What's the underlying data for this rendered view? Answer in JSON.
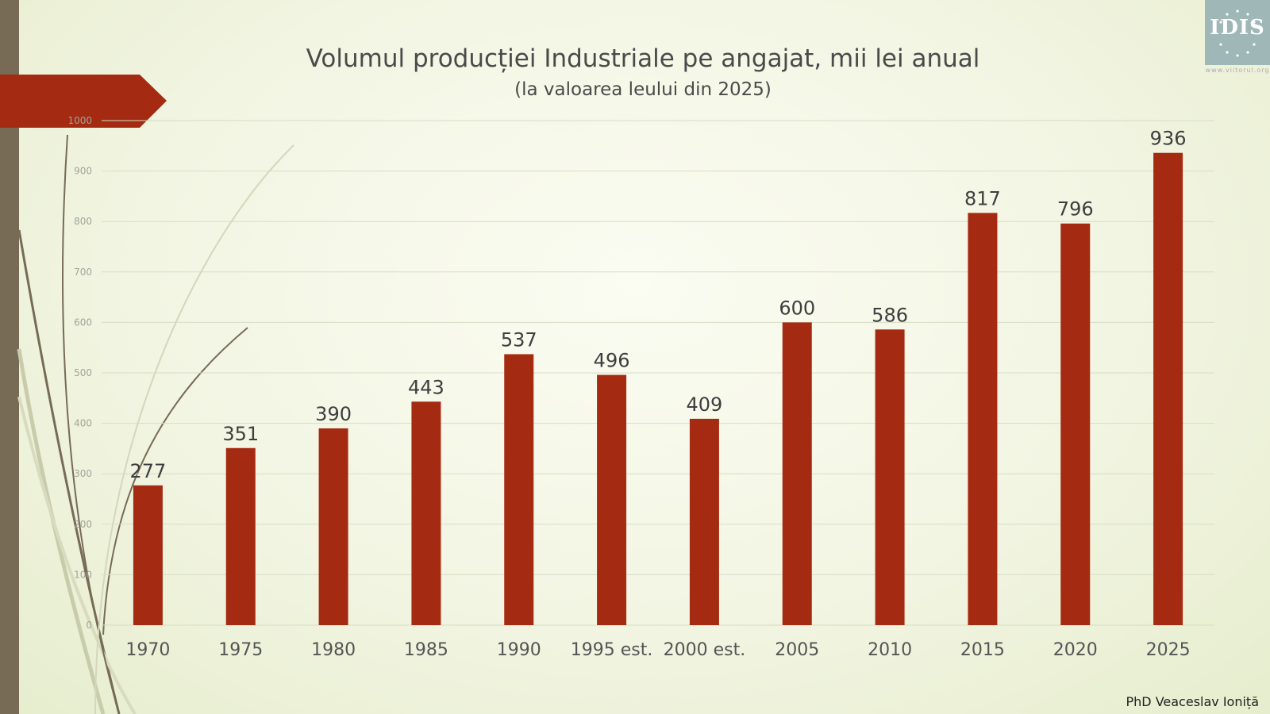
{
  "slide": {
    "author": "PhD Veaceslav Ioniță",
    "logo_text": "IDIS",
    "logo_url": "www.viitorul.org"
  },
  "chart_data": {
    "type": "bar",
    "title": "Volumul producției Industriale pe angajat, mii lei anual",
    "subtitle": "(la valoarea leului din 2025)",
    "xlabel": "",
    "ylabel": "",
    "categories": [
      "1970",
      "1975",
      "1980",
      "1985",
      "1990",
      "1995 est.",
      "2000 est.",
      "2005",
      "2010",
      "2015",
      "2020",
      "2025"
    ],
    "values": [
      277,
      351,
      390,
      443,
      537,
      496,
      409,
      600,
      586,
      817,
      796,
      936
    ],
    "ylim": [
      0,
      1000
    ],
    "yticks": [
      0,
      100,
      200,
      300,
      400,
      500,
      600,
      700,
      800,
      900,
      1000
    ],
    "grid": true,
    "legend": "none",
    "bar_color": "#a52a12"
  }
}
